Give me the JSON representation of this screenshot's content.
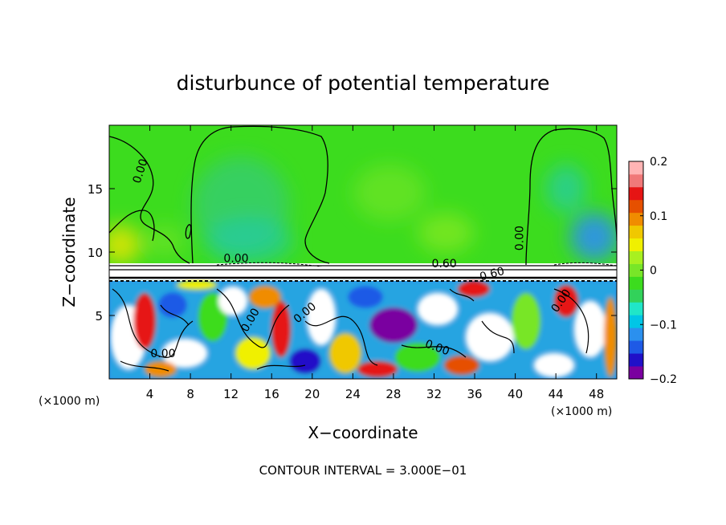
{
  "chart_data": {
    "type": "heatmap",
    "title": "disturbunce of potential temperature",
    "xlabel": "X−coordinate",
    "ylabel": "Z−coordinate",
    "x_unit_left": "(×1000 m)",
    "x_unit_right": "(×1000 m)",
    "xlim": [
      0,
      50
    ],
    "ylim": [
      0,
      20
    ],
    "x_ticks": [
      4,
      8,
      12,
      16,
      20,
      24,
      28,
      32,
      36,
      40,
      44,
      48
    ],
    "y_ticks": [
      5,
      10,
      15
    ],
    "colorbar": {
      "range": [
        -0.2,
        0.2
      ],
      "tick_labels": [
        "0.2",
        "0.1",
        "0",
        "−0.1",
        "−0.2"
      ],
      "tick_values": [
        0.2,
        0.1,
        0,
        -0.1,
        -0.2
      ],
      "colors": [
        "#7a00a0",
        "#2010c8",
        "#1e5ae6",
        "#2b90ee",
        "#00c6e6",
        "#20e6c8",
        "#32d25a",
        "#3cdc1e",
        "#78e628",
        "#a8f020",
        "#f0f000",
        "#f0c800",
        "#f08c00",
        "#e65000",
        "#e61414",
        "#f07878",
        "#ffb4b4"
      ]
    },
    "contour_labels": [
      {
        "text": "0.00",
        "x": 3.4,
        "z": 16.3,
        "rotate": -72
      },
      {
        "text": "0.00",
        "x": 12.5,
        "z": 9.2,
        "rotate": 0
      },
      {
        "text": "0.60",
        "x": 33.0,
        "z": 8.8,
        "rotate": 0
      },
      {
        "text": "0.60",
        "x": 37.8,
        "z": 8.0,
        "rotate": -15
      },
      {
        "text": "0.00",
        "x": 40.8,
        "z": 11.1,
        "rotate": -90
      },
      {
        "text": "0.00",
        "x": 14.2,
        "z": 4.5,
        "rotate": -60
      },
      {
        "text": "0.00",
        "x": 19.5,
        "z": 5.0,
        "rotate": -40
      },
      {
        "text": "0.00",
        "x": 5.3,
        "z": 1.7,
        "rotate": 0
      },
      {
        "text": "0.00",
        "x": 32.2,
        "z": 2.2,
        "rotate": 20
      },
      {
        "text": "0.00",
        "x": 44.8,
        "z": 6.0,
        "rotate": -55
      }
    ],
    "contour_interval": "CONTOUR INTERVAL = 3.000E−01"
  }
}
